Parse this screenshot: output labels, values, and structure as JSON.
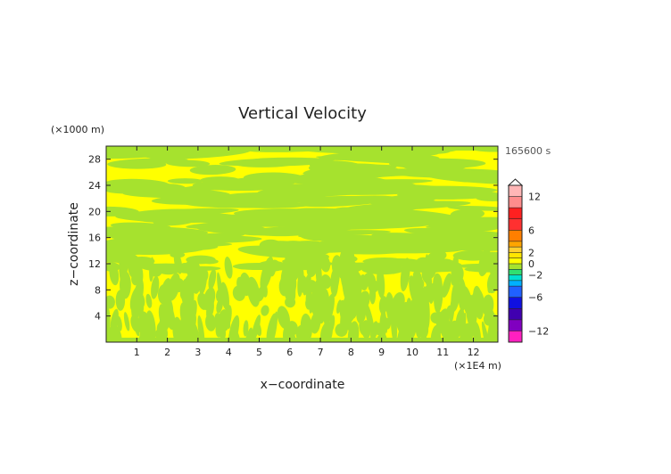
{
  "chart_data": {
    "type": "heatmap",
    "title": "Vertical Velocity",
    "xlabel": "x−coordinate",
    "ylabel": "z−coordinate",
    "x_unit_label": "(×1E4 m)",
    "y_unit_label": "(×1000 m)",
    "time_label": "165600 s",
    "xlim": [
      0,
      12.8
    ],
    "ylim": [
      0,
      30
    ],
    "x_ticks": [
      1,
      2,
      3,
      4,
      5,
      6,
      7,
      8,
      9,
      10,
      11,
      12
    ],
    "y_ticks": [
      4,
      8,
      12,
      16,
      20,
      24,
      28
    ],
    "field_colors": {
      "positive_weak": "#ffff00",
      "negative_weak": "#a6e22e"
    },
    "colorbar": {
      "labels": [
        "12",
        "6",
        "2",
        "0",
        "−2",
        "−6",
        "−12"
      ],
      "label_values": [
        12,
        6,
        2,
        0,
        -2,
        -6,
        -12
      ],
      "vrange": [
        -14,
        14
      ],
      "bands": [
        {
          "from": 12,
          "to": 14,
          "color": "#ffb6b6"
        },
        {
          "from": 10,
          "to": 12,
          "color": "#ff8c8c"
        },
        {
          "from": 8,
          "to": 10,
          "color": "#ff2020"
        },
        {
          "from": 6,
          "to": 8,
          "color": "#ff3030"
        },
        {
          "from": 4,
          "to": 6,
          "color": "#ff7f00"
        },
        {
          "from": 3,
          "to": 4,
          "color": "#ffa500"
        },
        {
          "from": 2,
          "to": 3,
          "color": "#ffcf30"
        },
        {
          "from": 1,
          "to": 2,
          "color": "#ffe600"
        },
        {
          "from": 0,
          "to": 1,
          "color": "#ffff00"
        },
        {
          "from": -1,
          "to": 0,
          "color": "#a6e22e"
        },
        {
          "from": -2,
          "to": -1,
          "color": "#30e070"
        },
        {
          "from": -3,
          "to": -2,
          "color": "#00e0d0"
        },
        {
          "from": -4,
          "to": -3,
          "color": "#00b0ff"
        },
        {
          "from": -6,
          "to": -4,
          "color": "#2060ff"
        },
        {
          "from": -8,
          "to": -6,
          "color": "#1010e0"
        },
        {
          "from": -10,
          "to": -8,
          "color": "#4000b0"
        },
        {
          "from": -12,
          "to": -10,
          "color": "#8000c0"
        },
        {
          "from": -14,
          "to": -12,
          "color": "#ff20c0"
        }
      ]
    }
  }
}
